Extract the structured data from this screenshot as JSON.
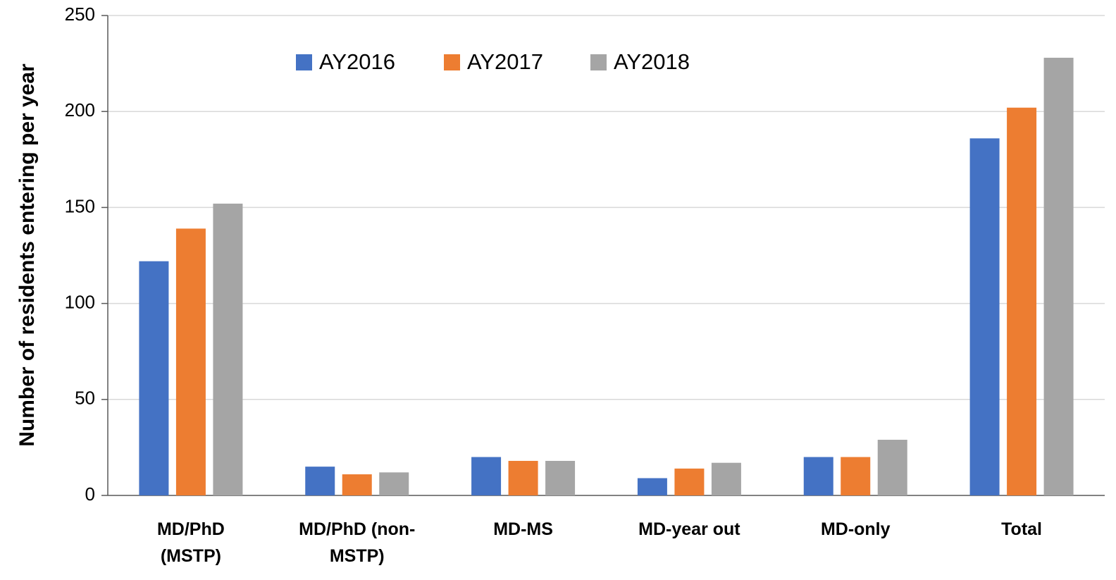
{
  "chart_data": {
    "type": "bar",
    "y_label": "Number of residents entering per year",
    "categories": [
      "MD/PhD (MSTP)",
      "MD/PhD (non-MSTP)",
      "MD-MS",
      "MD-year out",
      "MD-only",
      "Total"
    ],
    "series": [
      {
        "name": "AY2016",
        "color": "#4472c4",
        "values": [
          122,
          15,
          20,
          9,
          20,
          186
        ]
      },
      {
        "name": "AY2017",
        "color": "#ed7d31",
        "values": [
          139,
          11,
          18,
          14,
          20,
          202
        ]
      },
      {
        "name": "AY2018",
        "color": "#a5a5a5",
        "values": [
          152,
          12,
          18,
          17,
          29,
          228
        ]
      }
    ],
    "ylim": [
      0,
      250
    ],
    "yticks": [
      0,
      50,
      100,
      150,
      200,
      250
    ],
    "grid": true
  }
}
